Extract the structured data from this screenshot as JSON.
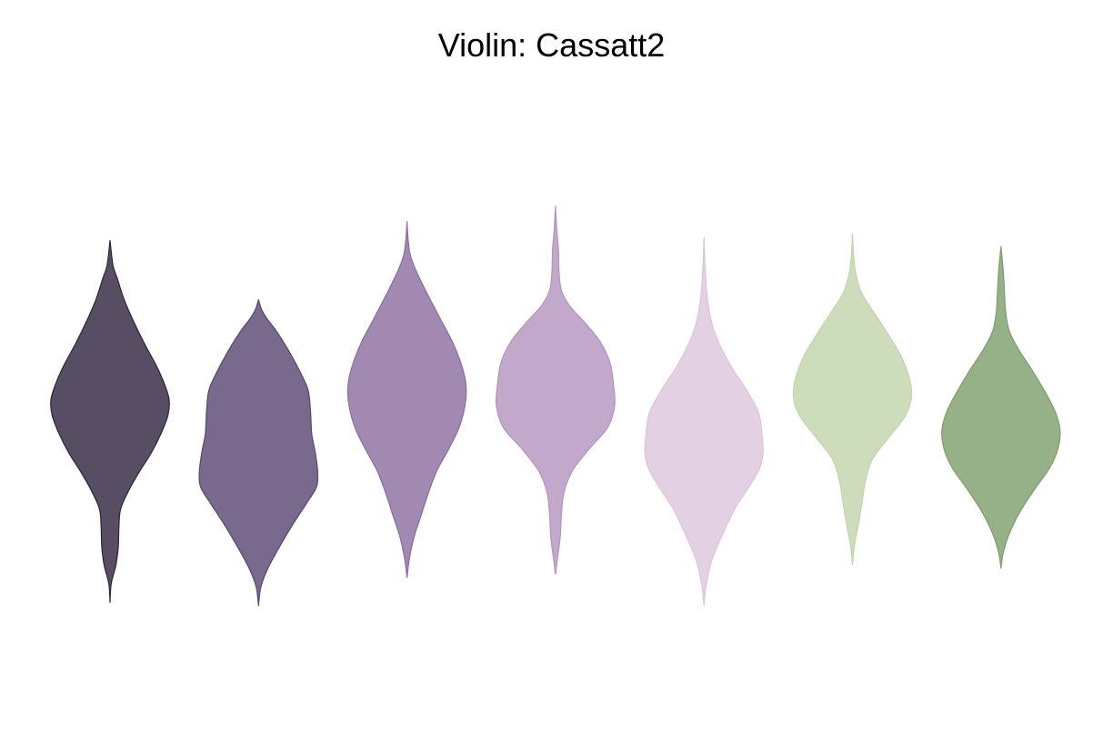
{
  "chart_data": {
    "type": "violin",
    "title": "Violin: Cassatt2",
    "xlabel": "",
    "ylabel": "",
    "grid": false,
    "axes_visible": false,
    "ylim": [
      -4.3,
      4.3
    ],
    "series": [
      {
        "color": "#2d223c",
        "fill_alpha": 0.8,
        "profile": [
          [
            -3.75,
            0.0
          ],
          [
            -3.45,
            0.02
          ],
          [
            -3.15,
            0.1
          ],
          [
            -2.85,
            0.14
          ],
          [
            -2.55,
            0.15
          ],
          [
            -2.25,
            0.18
          ],
          [
            -1.95,
            0.32
          ],
          [
            -1.65,
            0.5
          ],
          [
            -1.35,
            0.7
          ],
          [
            -1.05,
            0.86
          ],
          [
            -0.75,
            0.98
          ],
          [
            -0.5,
            1.0
          ],
          [
            -0.25,
            0.92
          ],
          [
            0.05,
            0.78
          ],
          [
            0.4,
            0.58
          ],
          [
            0.75,
            0.4
          ],
          [
            1.1,
            0.24
          ],
          [
            1.45,
            0.12
          ],
          [
            1.65,
            0.05
          ],
          [
            2.05,
            0.0
          ]
        ]
      },
      {
        "color": "#574571",
        "fill_alpha": 0.8,
        "profile": [
          [
            -3.8,
            0.0
          ],
          [
            -3.5,
            0.04
          ],
          [
            -3.2,
            0.16
          ],
          [
            -2.85,
            0.36
          ],
          [
            -2.5,
            0.58
          ],
          [
            -2.15,
            0.82
          ],
          [
            -1.9,
            0.98
          ],
          [
            -1.65,
            1.0
          ],
          [
            -1.35,
            0.96
          ],
          [
            -1.05,
            0.9
          ],
          [
            -0.7,
            0.88
          ],
          [
            -0.35,
            0.84
          ],
          [
            -0.05,
            0.7
          ],
          [
            0.3,
            0.5
          ],
          [
            0.6,
            0.3
          ],
          [
            0.8,
            0.14
          ],
          [
            0.95,
            0.05
          ],
          [
            1.1,
            0.0
          ]
        ]
      },
      {
        "color": "#8a6c9e",
        "fill_alpha": 0.8,
        "profile": [
          [
            -3.35,
            0.0
          ],
          [
            -3.05,
            0.04
          ],
          [
            -2.7,
            0.12
          ],
          [
            -2.35,
            0.24
          ],
          [
            -2.0,
            0.36
          ],
          [
            -1.65,
            0.5
          ],
          [
            -1.3,
            0.7
          ],
          [
            -0.95,
            0.88
          ],
          [
            -0.6,
            0.98
          ],
          [
            -0.3,
            1.0
          ],
          [
            0.0,
            0.94
          ],
          [
            0.4,
            0.78
          ],
          [
            0.8,
            0.56
          ],
          [
            1.2,
            0.34
          ],
          [
            1.55,
            0.16
          ],
          [
            1.8,
            0.06
          ],
          [
            2.05,
            0.02
          ],
          [
            2.35,
            0.0
          ]
        ]
      },
      {
        "color": "#b393bf",
        "fill_alpha": 0.8,
        "profile": [
          [
            -3.3,
            0.0
          ],
          [
            -3.0,
            0.04
          ],
          [
            -2.7,
            0.08
          ],
          [
            -2.35,
            0.1
          ],
          [
            -2.0,
            0.14
          ],
          [
            -1.65,
            0.28
          ],
          [
            -1.3,
            0.56
          ],
          [
            -0.95,
            0.88
          ],
          [
            -0.6,
            1.0
          ],
          [
            -0.25,
            0.98
          ],
          [
            0.1,
            0.92
          ],
          [
            0.45,
            0.74
          ],
          [
            0.75,
            0.48
          ],
          [
            1.0,
            0.24
          ],
          [
            1.25,
            0.1
          ],
          [
            1.55,
            0.06
          ],
          [
            1.9,
            0.05
          ],
          [
            2.25,
            0.02
          ],
          [
            2.6,
            0.0
          ]
        ]
      },
      {
        "color": "#dcc4dc",
        "fill_alpha": 0.8,
        "profile": [
          [
            -3.8,
            0.0
          ],
          [
            -3.45,
            0.04
          ],
          [
            -3.05,
            0.14
          ],
          [
            -2.65,
            0.32
          ],
          [
            -2.25,
            0.52
          ],
          [
            -1.9,
            0.76
          ],
          [
            -1.6,
            0.94
          ],
          [
            -1.35,
            1.0
          ],
          [
            -1.05,
            0.98
          ],
          [
            -0.7,
            0.92
          ],
          [
            -0.35,
            0.72
          ],
          [
            0.0,
            0.48
          ],
          [
            0.35,
            0.28
          ],
          [
            0.7,
            0.14
          ],
          [
            1.1,
            0.06
          ],
          [
            1.6,
            0.02
          ],
          [
            2.1,
            0.0
          ]
        ]
      },
      {
        "color": "#c1d4aa",
        "fill_alpha": 0.8,
        "profile": [
          [
            -3.15,
            0.0
          ],
          [
            -2.85,
            0.03
          ],
          [
            -2.5,
            0.1
          ],
          [
            -2.15,
            0.16
          ],
          [
            -1.8,
            0.22
          ],
          [
            -1.45,
            0.34
          ],
          [
            -1.1,
            0.62
          ],
          [
            -0.75,
            0.9
          ],
          [
            -0.45,
            1.0
          ],
          [
            -0.15,
            0.96
          ],
          [
            0.2,
            0.82
          ],
          [
            0.55,
            0.6
          ],
          [
            0.9,
            0.36
          ],
          [
            1.2,
            0.16
          ],
          [
            1.5,
            0.06
          ],
          [
            1.8,
            0.02
          ],
          [
            2.15,
            0.0
          ]
        ]
      },
      {
        "color": "#7c9e69",
        "fill_alpha": 0.8,
        "profile": [
          [
            -3.2,
            0.0
          ],
          [
            -2.95,
            0.04
          ],
          [
            -2.65,
            0.14
          ],
          [
            -2.3,
            0.32
          ],
          [
            -1.95,
            0.56
          ],
          [
            -1.6,
            0.82
          ],
          [
            -1.3,
            0.96
          ],
          [
            -1.0,
            1.0
          ],
          [
            -0.7,
            0.92
          ],
          [
            -0.4,
            0.76
          ],
          [
            -0.05,
            0.54
          ],
          [
            0.3,
            0.3
          ],
          [
            0.6,
            0.14
          ],
          [
            0.9,
            0.08
          ],
          [
            1.2,
            0.06
          ],
          [
            1.55,
            0.04
          ],
          [
            1.95,
            0.0
          ]
        ]
      }
    ]
  }
}
